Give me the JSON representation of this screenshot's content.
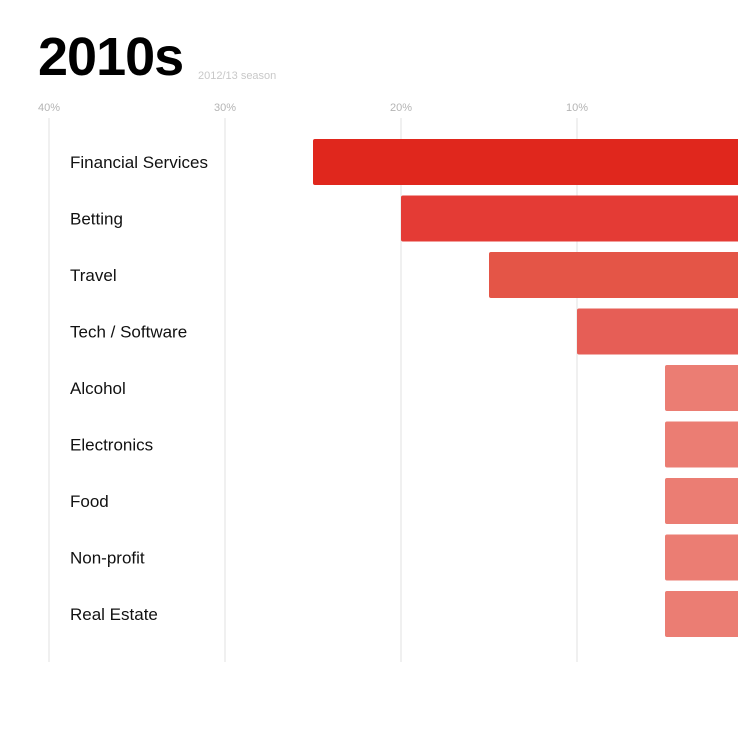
{
  "title": "2010s",
  "subtitle": "2012/13 season",
  "chart_data": {
    "type": "bar",
    "orientation": "horizontal",
    "x_axis_reversed": true,
    "title": "2010s",
    "subtitle": "2012/13 season",
    "xlabel": "",
    "ylabel": "",
    "xlim": [
      0,
      40
    ],
    "ticks": [
      {
        "value": 40,
        "label": "40%"
      },
      {
        "value": 30,
        "label": "30%"
      },
      {
        "value": 20,
        "label": "20%"
      },
      {
        "value": 10,
        "label": "10%"
      }
    ],
    "grid": true,
    "legend": "none",
    "categories": [
      "Financial Services",
      "Betting",
      "Travel",
      "Tech / Software",
      "Alcohol",
      "Electronics",
      "Food",
      "Non-profit",
      "Real Estate"
    ],
    "values": [
      25,
      20,
      15,
      10,
      5,
      5,
      5,
      5,
      5
    ],
    "colors": [
      "#e0271d",
      "#e43b35",
      "#e45547",
      "#e65e56",
      "#eb7d73",
      "#eb7d73",
      "#eb7d73",
      "#eb7d73",
      "#eb7d73"
    ]
  }
}
